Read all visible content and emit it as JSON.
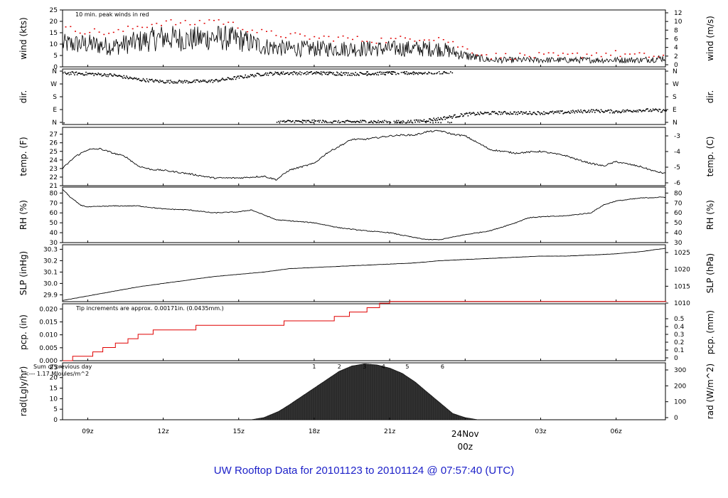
{
  "title": "UW Rooftop Data for 20101123  to  20101124 @ 07:57:40  (UTC)",
  "x_axis": {
    "ticks": [
      "09z",
      "12z",
      "15z",
      "18z",
      "21z",
      "03z",
      "06z"
    ],
    "tick_hours": [
      9,
      12,
      15,
      18,
      21,
      27,
      30
    ],
    "day_label": "24Nov",
    "day_time": "00z",
    "day_hour": 24,
    "start_hour": 8.0,
    "end_hour": 31.96
  },
  "chart_data": [
    {
      "type": "line",
      "name": "wind",
      "ylabel": "wind (kts)",
      "ylabel_right": "wind (m/s)",
      "ylim": [
        0,
        25
      ],
      "yticks": [
        "0",
        "5",
        "10",
        "15",
        "20",
        "25"
      ],
      "yticks_right": [
        "0",
        "2",
        "4",
        "6",
        "8",
        "10",
        "12"
      ],
      "annotation": "10 min. peak winds in red",
      "series": [
        {
          "values_desc": "speed",
          "x": [
            8,
            9,
            10,
            11,
            12,
            13,
            14,
            15,
            16,
            17,
            18,
            19,
            20,
            21,
            22,
            23,
            24,
            25,
            26,
            27,
            28,
            29,
            30,
            31,
            32
          ],
          "y": [
            10,
            10,
            9,
            11,
            13,
            12,
            13,
            12,
            9,
            8,
            8,
            8,
            8,
            8,
            8,
            8,
            5,
            3,
            3,
            3,
            3,
            3,
            3,
            3,
            4
          ]
        },
        {
          "values_desc": "peak",
          "x": [
            8,
            9,
            10,
            11,
            12,
            13,
            14,
            15,
            16,
            17,
            18,
            19,
            20,
            21,
            22,
            23,
            24,
            25,
            26,
            27,
            28,
            29,
            30,
            31,
            32
          ],
          "y": [
            17,
            16,
            15,
            18,
            20,
            19,
            21,
            18,
            15,
            14,
            13,
            13,
            12,
            12,
            13,
            13,
            8,
            5,
            5,
            5,
            5,
            6,
            6,
            5,
            5
          ]
        }
      ]
    },
    {
      "type": "scatter",
      "name": "dir",
      "ylabel": "dir.",
      "ylabel_right": "dir.",
      "yticks": [
        "N",
        "W",
        "S",
        "E",
        "N"
      ],
      "yticks_right": [
        "N",
        "W",
        "S",
        "E",
        "N"
      ],
      "series": [
        {
          "x": [
            8,
            9,
            10,
            11,
            12,
            13,
            14,
            15,
            16,
            17,
            18,
            19,
            20,
            21,
            22,
            23,
            23.5
          ],
          "y": [
            350,
            345,
            335,
            305,
            290,
            290,
            295,
            320,
            345,
            350,
            350,
            345,
            345,
            350,
            350,
            355,
            355
          ]
        },
        {
          "x": [
            16.5,
            17,
            18,
            19,
            20,
            21,
            22,
            23,
            24,
            25,
            26,
            27,
            28,
            29,
            30,
            31,
            32
          ],
          "y": [
            5,
            10,
            10,
            5,
            10,
            5,
            10,
            30,
            60,
            70,
            70,
            70,
            75,
            85,
            80,
            90,
            85
          ]
        }
      ]
    },
    {
      "type": "line",
      "name": "temp",
      "ylabel": "temp. (F)",
      "ylabel_right": "temp. (C)",
      "ylim": [
        21,
        27.8
      ],
      "yticks": [
        "21",
        "22",
        "23",
        "24",
        "25",
        "26",
        "27"
      ],
      "yticks_right": [
        "-6",
        "-5",
        "-4",
        "-3"
      ],
      "x": [
        8,
        8.5,
        9,
        9.5,
        10,
        10.5,
        11,
        11.5,
        12,
        13,
        14,
        15,
        16,
        16.5,
        17,
        18,
        18.5,
        19,
        19.5,
        20,
        20.5,
        21,
        21.5,
        22,
        22.5,
        23,
        23.5,
        24,
        25,
        26,
        27,
        28,
        28.5,
        29,
        29.5,
        30,
        30.5,
        31,
        31.5,
        32
      ],
      "values": [
        23.0,
        24.4,
        25.2,
        25.3,
        24.8,
        24.4,
        23.3,
        22.9,
        22.8,
        22.4,
        21.9,
        21.9,
        22.1,
        21.7,
        22.8,
        23.6,
        24.8,
        25.6,
        26.4,
        26.4,
        26.6,
        26.8,
        26.9,
        26.9,
        27.3,
        27.4,
        27.0,
        26.8,
        25.2,
        24.8,
        25.0,
        24.5,
        24.0,
        23.6,
        23.3,
        23.8,
        23.5,
        23.2,
        22.7,
        22.4
      ]
    },
    {
      "type": "line",
      "name": "rh",
      "ylabel": "RH (%)",
      "ylabel_right": "RH (%)",
      "ylim": [
        30,
        86
      ],
      "yticks": [
        "30",
        "40",
        "50",
        "60",
        "70",
        "80"
      ],
      "yticks_right": [
        "30",
        "40",
        "50",
        "60",
        "70",
        "80"
      ],
      "x": [
        8,
        8.3,
        8.7,
        9,
        10,
        11,
        12,
        13,
        14,
        15,
        15.5,
        16,
        16.5,
        17,
        18,
        19,
        20,
        21,
        22,
        22.5,
        23,
        24,
        25,
        26,
        26.5,
        27,
        28,
        29,
        29.5,
        30,
        31,
        32
      ],
      "values": [
        84,
        76,
        68,
        66,
        67,
        67,
        64,
        63,
        60,
        61,
        63,
        58,
        53,
        52,
        50,
        45,
        42,
        40,
        35,
        33,
        33,
        38,
        42,
        50,
        55,
        56,
        57,
        60,
        68,
        72,
        75,
        76
      ]
    },
    {
      "type": "line",
      "name": "slp",
      "ylabel": "SLP (inHg)",
      "ylabel_right": "SLP (hPa)",
      "ylim": [
        29.84,
        30.34
      ],
      "yticks": [
        "29.9",
        "30.0",
        "30.1",
        "30.2",
        "30.3"
      ],
      "yticks_right": [
        "1010",
        "1015",
        "1020",
        "1025"
      ],
      "x": [
        8,
        9,
        10,
        11,
        12,
        13,
        14,
        15,
        16,
        17,
        18,
        19,
        20,
        21,
        22,
        23,
        24,
        25,
        26,
        27,
        28,
        29,
        30,
        31,
        32
      ],
      "values": [
        29.85,
        29.89,
        29.93,
        29.97,
        30.0,
        30.03,
        30.06,
        30.08,
        30.1,
        30.13,
        30.14,
        30.15,
        30.16,
        30.17,
        30.18,
        30.2,
        30.21,
        30.22,
        30.23,
        30.24,
        30.24,
        30.25,
        30.26,
        30.28,
        30.31
      ]
    },
    {
      "type": "line",
      "name": "pcp",
      "ylabel": "pcp. (in)",
      "ylabel_right": "pcp. (mm)",
      "ylim": [
        0,
        0.022
      ],
      "yticks": [
        "0.000",
        "0.005",
        "0.010",
        "0.015",
        "0.020"
      ],
      "yticks_right": [
        "0",
        "0.1",
        "0.2",
        "0.3",
        "0.4",
        "0.5"
      ],
      "annotation": "Tip increments are approx. 0.00171in. (0.0435mm.)",
      "x": [
        8,
        8.4,
        9.2,
        9.6,
        10.1,
        10.6,
        11.0,
        11.6,
        13.3,
        16.8,
        18.8,
        19.4,
        20.1,
        20.6,
        21.0,
        32.0
      ],
      "values": [
        0.0,
        0.0017,
        0.0034,
        0.0051,
        0.0068,
        0.0085,
        0.0102,
        0.0119,
        0.0137,
        0.0154,
        0.0171,
        0.0188,
        0.0205,
        0.0222,
        0.0229,
        0.0229
      ]
    },
    {
      "type": "area",
      "name": "rad",
      "ylabel": "rad(Lgly/hr)",
      "ylabel_right": "rad (W/m^2)",
      "ylim": [
        0,
        27
      ],
      "yticks": [
        "0",
        "5",
        "10",
        "15",
        "20",
        "25"
      ],
      "yticks_right": [
        "0",
        "100",
        "200",
        "300"
      ],
      "annotation_1": "Sum of previous day",
      "annotation_2": "<--- 1.17 MJoules/m^2",
      "markers": [
        "1",
        "2",
        "3",
        "4",
        "5",
        "6"
      ],
      "marker_hours": [
        18.0,
        19.0,
        20.0,
        20.75,
        21.7,
        23.1
      ],
      "x": [
        15.5,
        16.0,
        16.3,
        16.6,
        17.0,
        17.5,
        18.0,
        18.5,
        19.0,
        19.5,
        20.0,
        20.5,
        21.0,
        21.5,
        22.0,
        22.5,
        23.0,
        23.5,
        24.0,
        24.5
      ],
      "values": [
        0,
        1,
        2.5,
        4,
        7,
        11,
        15,
        19,
        23,
        25.5,
        26.5,
        26,
        24.5,
        22,
        18,
        13,
        8,
        3,
        1,
        0
      ]
    }
  ]
}
